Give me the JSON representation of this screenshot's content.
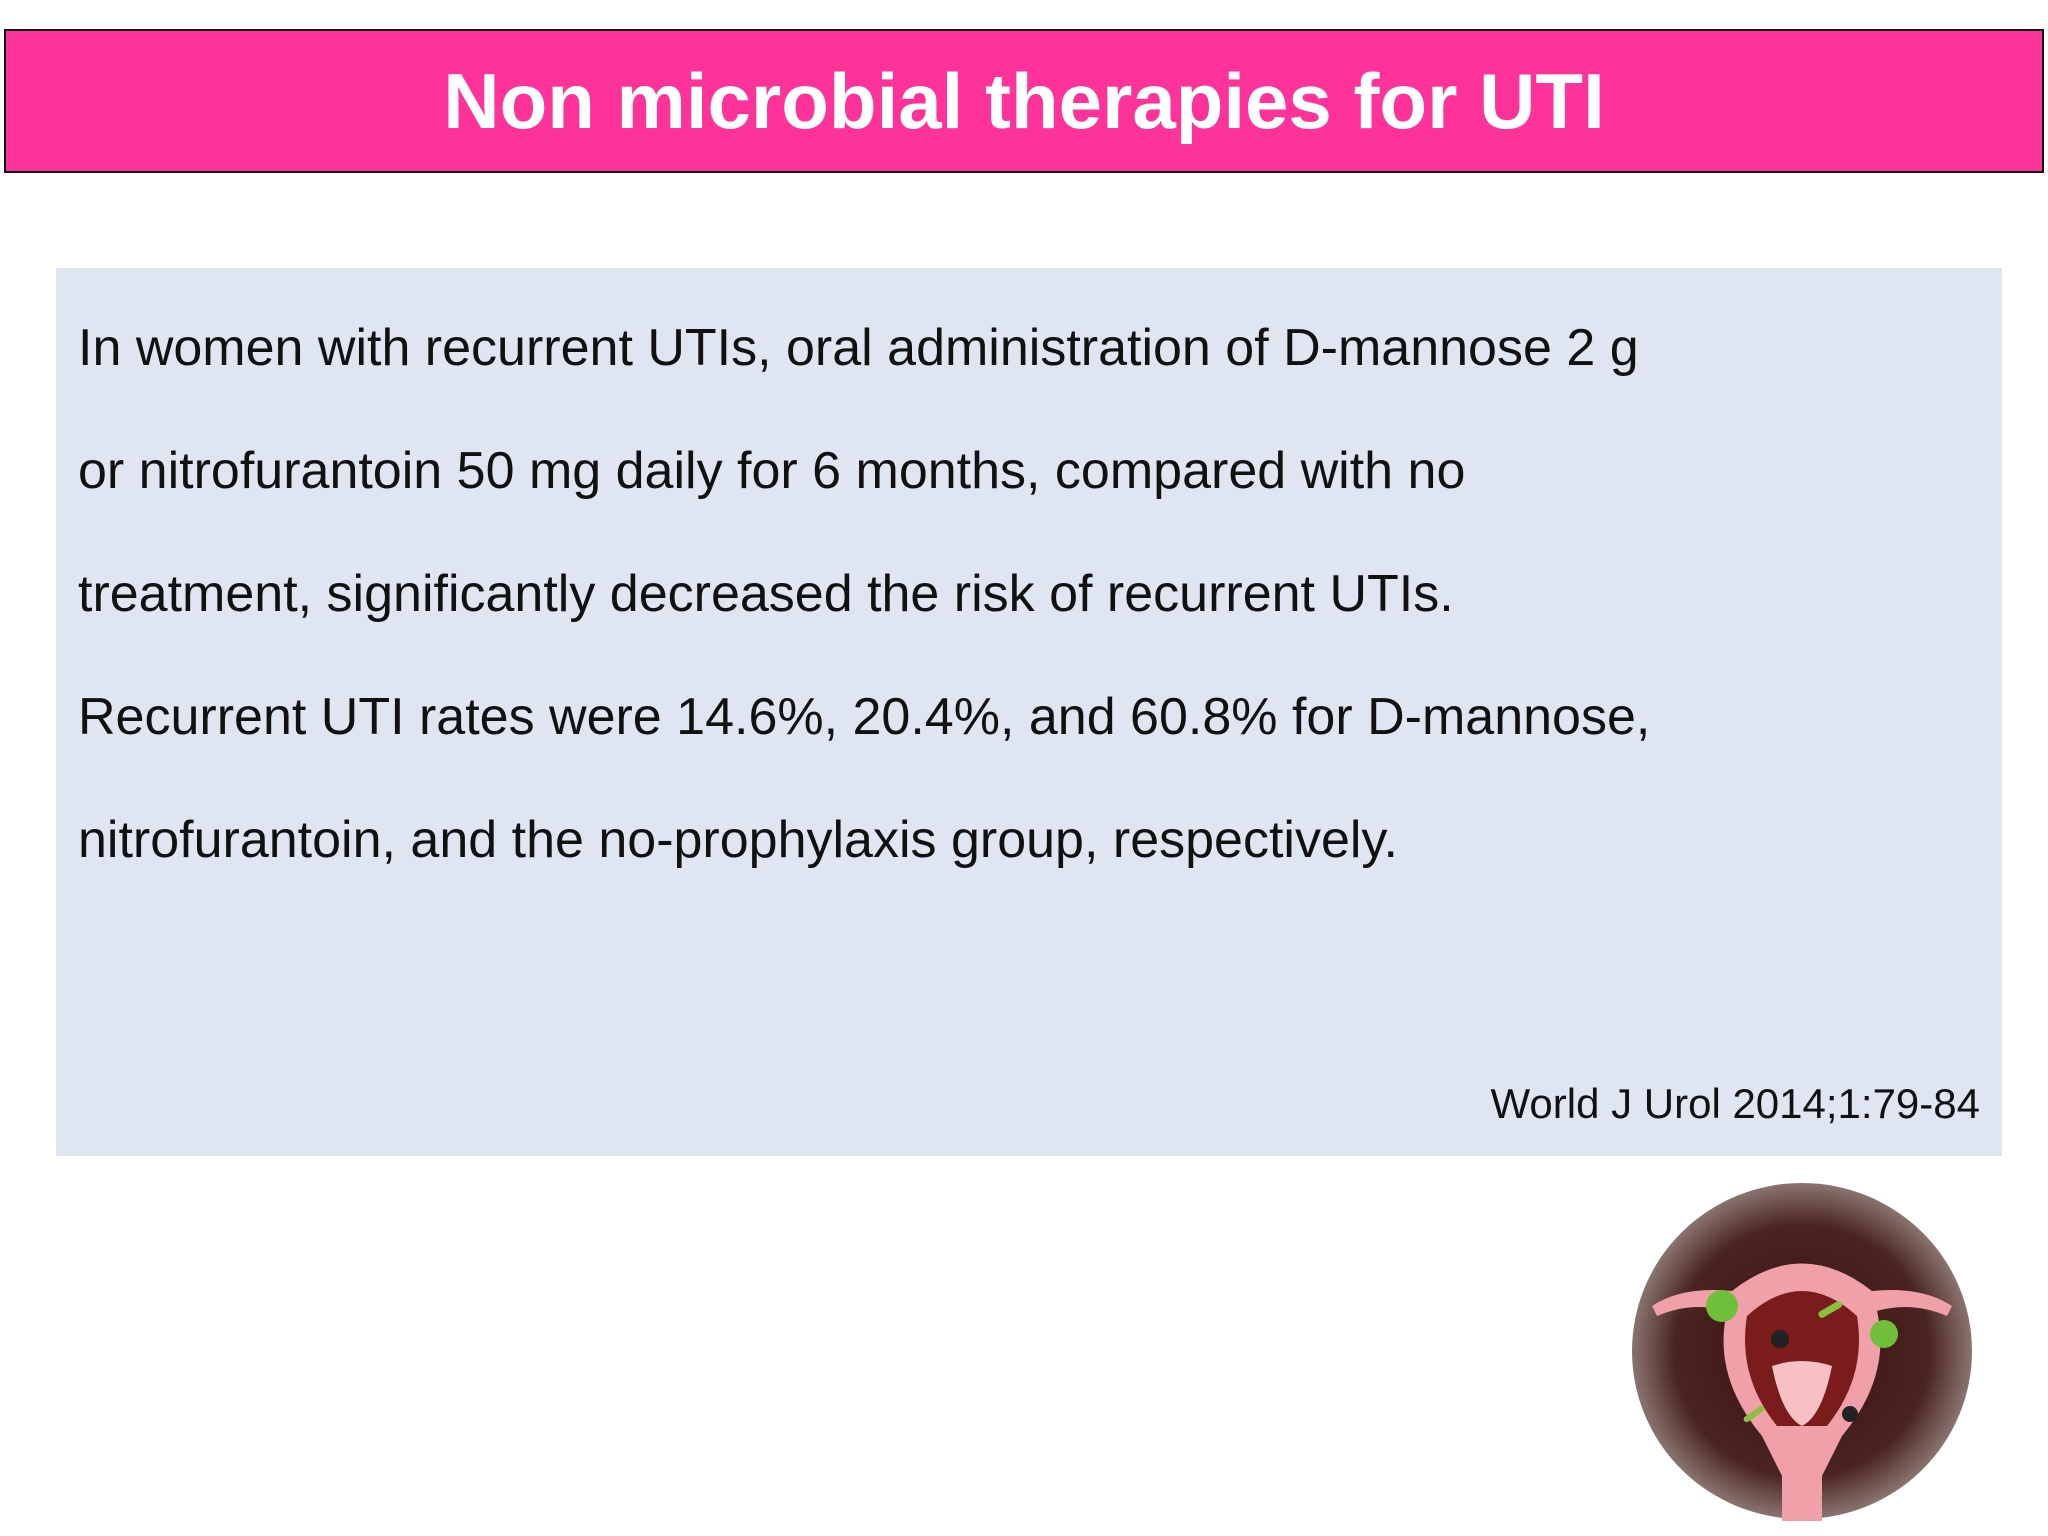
{
  "header": {
    "title": "Non microbial therapies for UTI"
  },
  "content": {
    "body_lines": [
      "In women with recurrent UTIs, oral administration of D-mannose 2 g",
      "or nitrofurantoin 50 mg daily for 6 months, compared with no",
      "treatment, significantly decreased the risk of recurrent UTIs.",
      "Recurrent UTI rates were 14.6%, 20.4%, and 60.8% for D-mannose,",
      "nitrofurantoin, and the no-prophylaxis group, respectively."
    ],
    "citation": "World J Urol 2014;1:79-84"
  }
}
